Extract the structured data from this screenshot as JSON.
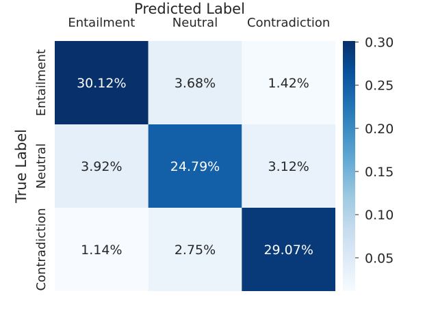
{
  "chart_data": {
    "type": "heatmap",
    "title": "",
    "xlabel": "Predicted Label",
    "ylabel": "True Label",
    "x_categories": [
      "Entailment",
      "Neutral",
      "Contradiction"
    ],
    "y_categories": [
      "Entailment",
      "Neutral",
      "Contradiction"
    ],
    "values": [
      [
        0.3012,
        0.0368,
        0.0142
      ],
      [
        0.0392,
        0.2479,
        0.0312
      ],
      [
        0.0114,
        0.0275,
        0.2907
      ]
    ],
    "cell_labels": [
      [
        "30.12%",
        "3.68%",
        "1.42%"
      ],
      [
        "3.92%",
        "24.79%",
        "3.12%"
      ],
      [
        "1.14%",
        "2.75%",
        "29.07%"
      ]
    ],
    "colormap": "Blues",
    "colorbar": {
      "range": [
        0.0114,
        0.3012
      ],
      "ticks": [
        0.05,
        0.1,
        0.15,
        0.2,
        0.25,
        0.3
      ],
      "tick_labels": [
        "0.05",
        "0.10",
        "0.15",
        "0.20",
        "0.25",
        "0.30"
      ]
    },
    "x_axis_position": "top",
    "grid": false
  }
}
